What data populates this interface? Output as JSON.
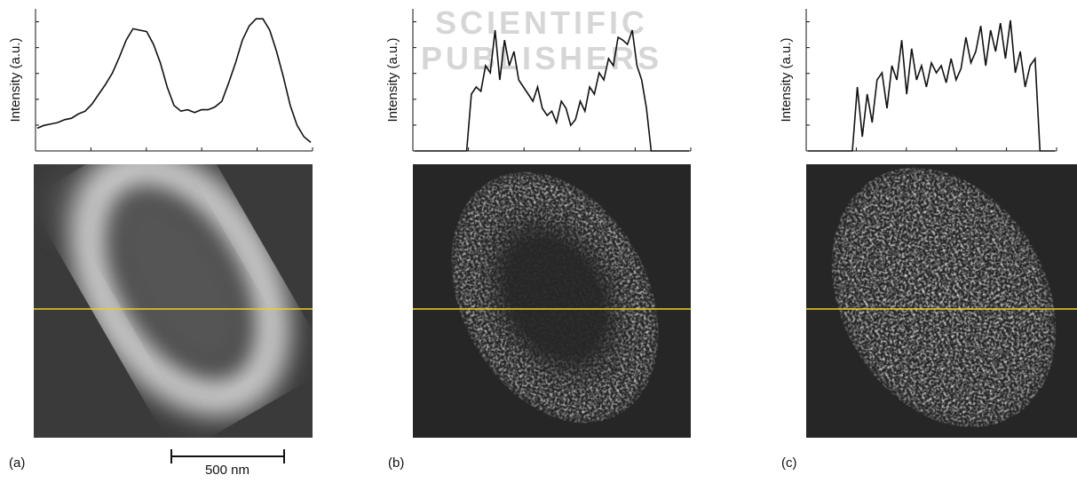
{
  "panels": [
    {
      "label": "(a)",
      "y_label": "Intensity (a.u.)",
      "ylim": [
        0,
        100
      ],
      "profile": [
        16,
        18,
        19,
        20,
        22,
        23,
        26,
        28,
        33,
        40,
        47,
        55,
        66,
        78,
        86,
        85,
        84,
        75,
        62,
        45,
        32,
        28,
        29,
        27,
        29,
        29,
        31,
        35,
        48,
        62,
        78,
        88,
        93,
        93,
        85,
        70,
        52,
        32,
        18,
        10,
        6
      ]
    },
    {
      "label": "(b)",
      "y_label": "Intensity (a.u.)",
      "ylim": [
        0,
        100
      ],
      "profile": [
        0,
        0,
        0,
        0,
        0,
        0,
        0,
        0,
        0,
        0,
        0,
        0,
        40,
        45,
        42,
        60,
        55,
        85,
        50,
        78,
        60,
        70,
        50,
        45,
        40,
        35,
        45,
        30,
        25,
        28,
        20,
        35,
        30,
        18,
        22,
        35,
        28,
        45,
        40,
        55,
        50,
        65,
        60,
        80,
        78,
        75,
        85,
        60,
        50,
        30,
        0,
        0,
        0,
        0,
        0,
        0,
        0,
        0,
        0
      ]
    },
    {
      "label": "(c)",
      "y_label": "Intensity (a.u.)",
      "ylim": [
        0,
        100
      ],
      "profile": [
        0,
        0,
        0,
        0,
        0,
        0,
        0,
        0,
        0,
        0,
        45,
        10,
        40,
        20,
        50,
        55,
        30,
        60,
        50,
        78,
        40,
        72,
        50,
        60,
        45,
        62,
        55,
        60,
        48,
        65,
        50,
        58,
        80,
        62,
        70,
        88,
        60,
        85,
        70,
        90,
        65,
        92,
        55,
        70,
        45,
        60,
        65,
        0,
        0,
        0,
        0
      ]
    }
  ],
  "scale_bar": {
    "label": "500 nm"
  },
  "watermark": {
    "lines": [
      "SCIENTIFIC",
      "PUBLISHERS"
    ]
  }
}
